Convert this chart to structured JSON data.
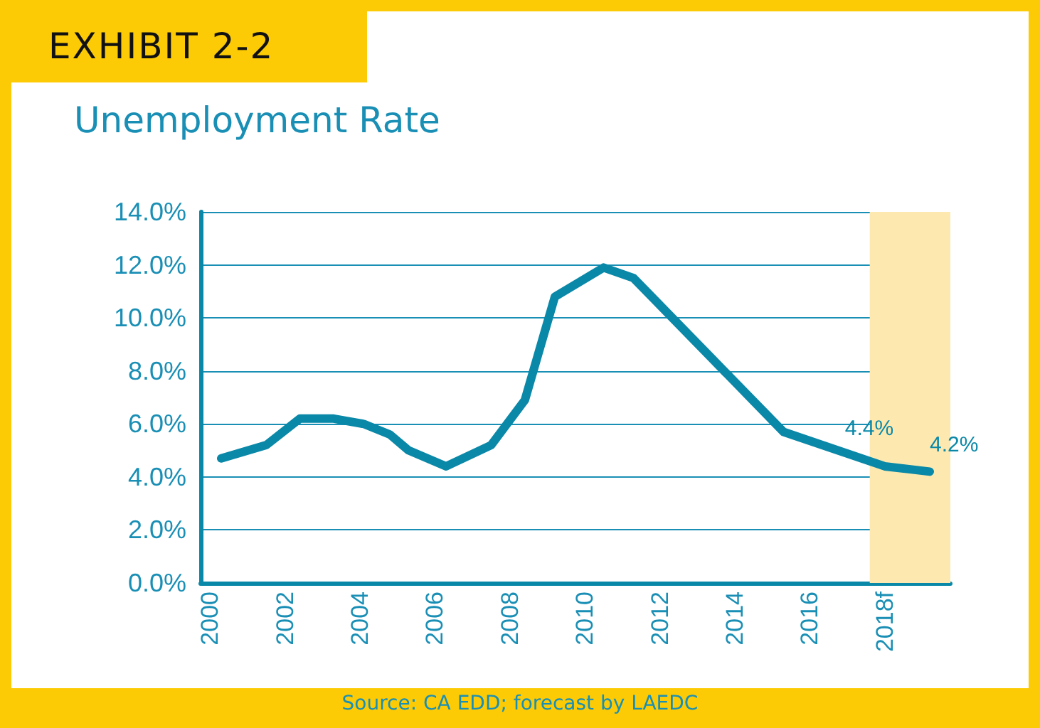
{
  "chart_data": {
    "type": "line",
    "subtitle": "EXHIBIT 2-2",
    "title": "Unemployment Rate",
    "annotations": [
      "Source: CA EDD; forecast by LAEDC"
    ],
    "x": [
      2000.3,
      2001.5,
      2002.4,
      2003.3,
      2004.1,
      2004.8,
      2005.3,
      2006.3,
      2007.5,
      2008.4,
      2009.2,
      2010.5,
      2011.3,
      2015.3,
      2018,
      2019.2
    ],
    "series": [
      {
        "color": "#0a88a8",
        "values": [
          4.7,
          5.2,
          6.2,
          6.2,
          6.0,
          5.6,
          5.0,
          4.4,
          5.2,
          6.9,
          10.8,
          11.9,
          11.5,
          5.7,
          4.4,
          4.2
        ],
        "value_labels": [
          null,
          null,
          null,
          null,
          null,
          null,
          null,
          null,
          null,
          null,
          null,
          null,
          null,
          null,
          "4.4%",
          "4.2%"
        ]
      }
    ],
    "xlim": [
      1999.75,
      2019.75
    ],
    "xticks": [
      2000,
      2002,
      2004,
      2006,
      2008,
      2010,
      2012,
      2014,
      2016,
      {
        "value": 2018,
        "label": "2018f"
      }
    ],
    "ylim": [
      0,
      14
    ],
    "yticks": [
      {
        "value": 0,
        "label": "0.0%"
      },
      {
        "value": 2,
        "label": "2.0%"
      },
      {
        "value": 4,
        "label": "4.0%"
      },
      {
        "value": 6,
        "label": "6.0%"
      },
      {
        "value": 8,
        "label": "8.0%"
      },
      {
        "value": 10,
        "label": "10.0%"
      },
      {
        "value": 12,
        "label": "12.0%"
      },
      {
        "value": 14,
        "label": "14.0%"
      }
    ],
    "bands": [
      {
        "axis": "x",
        "from": 2017.6,
        "to": 2019.75,
        "color": "#fde9b0"
      }
    ],
    "grid": "y",
    "marker": "none",
    "line_style": "solid"
  }
}
